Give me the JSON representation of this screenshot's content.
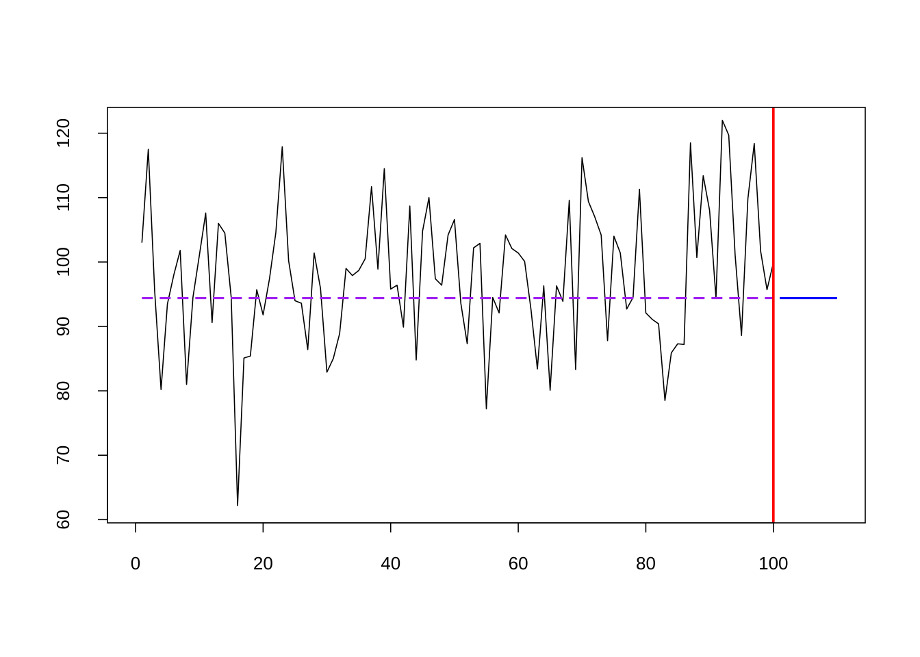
{
  "chart_data": {
    "type": "line",
    "title": "",
    "xlabel": "",
    "ylabel": "",
    "xlim": [
      -4.4,
      114.4
    ],
    "ylim": [
      59.5,
      124.0
    ],
    "x_ticks": [
      0,
      20,
      40,
      60,
      80,
      100
    ],
    "y_ticks": [
      60,
      70,
      80,
      90,
      100,
      110,
      120
    ],
    "x_tick_labels": [
      "0",
      "20",
      "40",
      "60",
      "80",
      "100"
    ],
    "y_tick_labels": [
      "60",
      "70",
      "80",
      "90",
      "100",
      "110",
      "120"
    ],
    "grid": false,
    "legend": "none",
    "series": [
      {
        "style": "solid-thin",
        "color": "#000000",
        "x_start": 1,
        "values": [
          103.0,
          117.5,
          95.5,
          80.2,
          93.5,
          98.0,
          101.8,
          81.0,
          94.5,
          101.0,
          107.6,
          90.6,
          106.0,
          104.5,
          94.5,
          62.2,
          85.1,
          85.4,
          95.7,
          91.8,
          97.4,
          104.6,
          117.9,
          100.2,
          94.0,
          93.6,
          86.4,
          101.4,
          95.9,
          82.9,
          85.0,
          88.9,
          99.0,
          97.9,
          98.7,
          100.5,
          111.7,
          98.9,
          114.5,
          95.8,
          96.4,
          89.9,
          108.7,
          84.8,
          104.8,
          110.0,
          97.4,
          96.4,
          104.2,
          106.6,
          93.6,
          87.3,
          102.2,
          102.9,
          77.2,
          94.5,
          92.1,
          104.2,
          102.1,
          101.4,
          100.1,
          92.6,
          83.4,
          96.3,
          80.1,
          96.3,
          93.9,
          109.6,
          83.3,
          116.2,
          109.4,
          107.0,
          104.2,
          87.8,
          104.0,
          101.4,
          92.7,
          94.5,
          111.3,
          92.1,
          91.1,
          90.4,
          78.5,
          85.9,
          87.3,
          87.2,
          118.5,
          100.7,
          113.4,
          108.0,
          94.4,
          122.0,
          119.7,
          101.1,
          88.6,
          109.8,
          118.4,
          101.7,
          95.7,
          99.9
        ]
      },
      {
        "style": "dashed",
        "color": "#a020f0",
        "x": [
          1,
          100
        ],
        "values": [
          94.4,
          94.4
        ]
      },
      {
        "style": "solid-thick",
        "color": "#0000ff",
        "x": [
          101,
          110
        ],
        "values": [
          94.4,
          94.4
        ]
      }
    ],
    "vertical_lines": [
      {
        "x": 100,
        "color": "#ff0000"
      }
    ]
  }
}
